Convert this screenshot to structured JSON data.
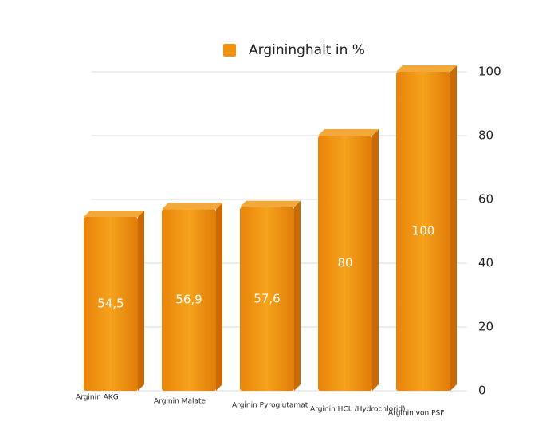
{
  "chart_data": {
    "type": "bar",
    "categories": [
      "Arginin AKG",
      "Arginin Malate",
      "Arginin Pyroglutamat",
      "Arginin HCL /Hydrochlorid)",
      "Arginin von PSF"
    ],
    "series": [
      {
        "name": "Argininghalt in %",
        "color": "#f0920f",
        "values": [
          54.5,
          56.9,
          57.6,
          80,
          100
        ],
        "value_labels": [
          "54,5",
          "56,9",
          "57,6",
          "80",
          "100"
        ]
      }
    ],
    "ylim": [
      0,
      100
    ],
    "yticks": [
      0,
      20,
      40,
      60,
      80,
      100
    ],
    "grid": true,
    "legend": "top"
  }
}
